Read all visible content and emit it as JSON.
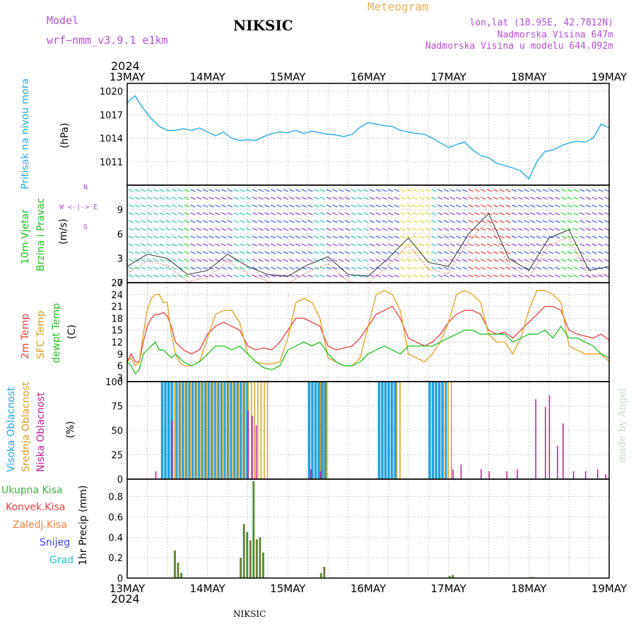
{
  "header": {
    "model_label": "Model",
    "model_name": "wrf−nmm_v3.9.1  e1km",
    "station": "NIKSIC",
    "meteogram": "Meteogram",
    "lonlat": "lon,lat (18.95E, 42.7812N)",
    "altitude": "Nadmorska Visina 647m",
    "model_altitude": "Nadmorska Visina u modelu 644.092m",
    "year_top": "2024",
    "year_bottom": "2024",
    "footer_station": "NIKSIC",
    "watermark": "made by Angel"
  },
  "colors": {
    "pressure": "#2aa8e0",
    "temp2m": "#e84040",
    "sfc": "#e0a020",
    "dewpt": "#20c020",
    "cloud_high": "#20a0e0",
    "cloud_mid": "#d8a020",
    "cloud_low": "#c01890",
    "precip_total": "#40b040",
    "precip_conv": "#c03030"
  },
  "x_axis": {
    "labels": [
      "13MAY",
      "14MAY",
      "15MAY",
      "16MAY",
      "17MAY",
      "18MAY",
      "19MAY"
    ]
  },
  "panel_labels": {
    "pressure": [
      "Pritisak na nivou mora",
      "(hPa)"
    ],
    "wind": [
      "10m Vjetar",
      "Brzina i Pravac",
      "(m/s)"
    ],
    "wind_compass": [
      "N",
      "W  <-|->  E",
      "S"
    ],
    "temp": [
      "2m Temp",
      "SFC Temp",
      "dewpt Temp",
      "(C)"
    ],
    "cloud": [
      "Visoka Oblacnost",
      "Srednja Oblacnost",
      "Niska Oblacnost",
      "(%)"
    ],
    "precip_legend": [
      "Ukupna Kisa",
      "Konvek.Kisa",
      "Zaledj.Kisa",
      "Snijeg",
      "Grad"
    ],
    "precip_y": [
      "1hr Precip (mm)"
    ]
  },
  "chart_data": [
    {
      "type": "line",
      "name": "pressure",
      "ylim": [
        1008,
        1021
      ],
      "yticks": [
        1011,
        1014,
        1017,
        1020
      ],
      "x_days": [
        0,
        0.05,
        0.1,
        0.15,
        0.2,
        0.3,
        0.4,
        0.5,
        0.6,
        0.7,
        0.8,
        0.9,
        1.0,
        1.1,
        1.2,
        1.3,
        1.4,
        1.5,
        1.6,
        1.7,
        1.8,
        1.9,
        2.0,
        2.1,
        2.2,
        2.3,
        2.4,
        2.5,
        2.6,
        2.7,
        2.8,
        2.9,
        3.0,
        3.1,
        3.2,
        3.3,
        3.4,
        3.5,
        3.6,
        3.7,
        3.8,
        3.9,
        4.0,
        4.1,
        4.2,
        4.3,
        4.4,
        4.5,
        4.6,
        4.7,
        4.8,
        4.9,
        5.0,
        5.1,
        5.2,
        5.3,
        5.4,
        5.5,
        5.6,
        5.7,
        5.8,
        5.9,
        6.0
      ],
      "values": [
        1018.5,
        1019.0,
        1019.4,
        1018.5,
        1017.8,
        1016.5,
        1015.5,
        1015.0,
        1015.0,
        1015.2,
        1015.0,
        1015.3,
        1014.8,
        1014.3,
        1014.8,
        1014.0,
        1013.7,
        1013.8,
        1013.7,
        1014.2,
        1014.6,
        1014.8,
        1014.7,
        1015.0,
        1014.6,
        1014.9,
        1014.7,
        1014.5,
        1014.4,
        1014.2,
        1014.5,
        1015.4,
        1016.0,
        1015.8,
        1015.6,
        1015.5,
        1015.0,
        1014.8,
        1014.6,
        1014.5,
        1014.0,
        1013.4,
        1012.8,
        1013.2,
        1013.5,
        1012.5,
        1011.8,
        1011.5,
        1010.8,
        1010.5,
        1010.2,
        1009.8,
        1008.8,
        1011.0,
        1012.3,
        1012.5,
        1013.0,
        1013.4,
        1013.6,
        1013.5,
        1014.0,
        1015.8,
        1015.3
      ]
    },
    {
      "type": "barb",
      "name": "wind",
      "ylim": [
        0,
        12
      ],
      "yticks": [
        0,
        3,
        6,
        9
      ],
      "x_days": [
        0,
        0.25,
        0.5,
        0.75,
        1.0,
        1.25,
        1.5,
        1.75,
        2.0,
        2.25,
        2.5,
        2.75,
        3.0,
        3.25,
        3.5,
        3.75,
        4.0,
        4.25,
        4.5,
        4.75,
        5.0,
        5.25,
        5.5,
        5.75,
        6.0
      ],
      "speed": [
        2.0,
        3.5,
        3.0,
        1.0,
        1.5,
        3.5,
        2.0,
        1.0,
        0.8,
        2.2,
        3.2,
        1.0,
        0.8,
        3.0,
        5.5,
        2.5,
        2.0,
        6.0,
        8.5,
        3.0,
        1.5,
        5.5,
        6.5,
        1.5,
        2.0
      ],
      "bands": [
        {
          "start": 0.0,
          "end": 0.65,
          "color": "#20c0a0"
        },
        {
          "start": 0.65,
          "end": 0.7,
          "color": "#20d020"
        },
        {
          "start": 1.3,
          "end": 1.5,
          "color": "#20c0a0"
        },
        {
          "start": 2.25,
          "end": 2.4,
          "color": "#20c0a0"
        },
        {
          "start": 2.7,
          "end": 2.95,
          "color": "#20c0a0"
        },
        {
          "start": 3.35,
          "end": 3.7,
          "color": "#e0d020"
        },
        {
          "start": 3.7,
          "end": 3.8,
          "color": "#20c0a0"
        },
        {
          "start": 4.2,
          "end": 4.7,
          "color": "#e83030"
        },
        {
          "start": 5.32,
          "end": 5.6,
          "color": "#20d020"
        }
      ]
    },
    {
      "type": "line",
      "name": "temperature",
      "ylim": [
        2,
        27
      ],
      "yticks": [
        3,
        6,
        9,
        12,
        15,
        18,
        21,
        24,
        27
      ],
      "x_days": [
        0,
        0.05,
        0.1,
        0.15,
        0.2,
        0.25,
        0.3,
        0.35,
        0.4,
        0.45,
        0.5,
        0.55,
        0.6,
        0.65,
        0.7,
        0.8,
        0.9,
        1.0,
        1.1,
        1.2,
        1.3,
        1.4,
        1.5,
        1.6,
        1.7,
        1.8,
        1.9,
        2.0,
        2.1,
        2.2,
        2.3,
        2.4,
        2.5,
        2.6,
        2.7,
        2.8,
        2.9,
        3.0,
        3.1,
        3.2,
        3.3,
        3.4,
        3.5,
        3.6,
        3.7,
        3.8,
        3.9,
        4.0,
        4.1,
        4.2,
        4.3,
        4.4,
        4.5,
        4.6,
        4.7,
        4.8,
        4.9,
        5.0,
        5.1,
        5.2,
        5.3,
        5.4,
        5.5,
        5.6,
        5.7,
        5.8,
        5.9,
        6.0
      ],
      "series": [
        {
          "name": "temp2m",
          "values": [
            7,
            9,
            7,
            7,
            12,
            16,
            18,
            19,
            19,
            19.5,
            18.5,
            16,
            12,
            11,
            10,
            9,
            10,
            14,
            16,
            17,
            16,
            15,
            11,
            10,
            10.5,
            10,
            12,
            15,
            18,
            18,
            17,
            16,
            11,
            10,
            10.5,
            11,
            13,
            16,
            19,
            20,
            21,
            18,
            13,
            12,
            11,
            12,
            14,
            17,
            19,
            20,
            20,
            19,
            15,
            14,
            14.5,
            13,
            15,
            17,
            19,
            21,
            21,
            20,
            15,
            14,
            13.5,
            13,
            14,
            12.5
          ]
        },
        {
          "name": "sfc",
          "values": [
            7,
            8,
            6,
            7,
            14,
            20,
            23,
            24,
            24,
            22,
            22,
            14,
            9,
            7,
            6,
            6,
            7,
            13,
            19,
            20,
            20,
            17,
            9,
            7,
            6.5,
            6.5,
            7,
            13,
            22,
            23,
            22,
            18,
            8,
            7,
            6,
            6,
            8,
            16,
            24,
            25,
            24,
            20,
            9,
            8,
            7,
            9,
            12,
            17,
            24,
            25,
            24,
            22,
            14,
            12,
            12,
            9,
            13,
            20,
            25,
            25,
            24,
            22,
            11,
            10,
            9,
            9,
            9,
            7
          ]
        },
        {
          "name": "dewpt",
          "values": [
            7,
            6,
            4,
            5,
            9,
            10,
            11,
            12,
            10,
            10,
            9,
            8,
            9,
            8,
            7,
            6,
            7,
            9,
            11,
            11,
            10,
            11,
            9,
            7,
            5.5,
            5,
            6,
            10,
            11,
            12,
            11,
            12,
            9,
            7,
            6,
            6,
            7,
            9,
            10,
            11,
            10,
            9,
            11,
            11,
            11,
            11,
            12,
            13,
            14,
            15,
            15,
            14,
            14,
            14,
            14,
            12,
            13,
            14,
            14,
            15,
            13,
            16,
            13,
            13,
            12,
            11,
            9,
            8
          ]
        }
      ]
    },
    {
      "type": "bar",
      "name": "cloud",
      "ylim": [
        0,
        100
      ],
      "yticks": [
        0,
        25,
        50,
        75,
        100
      ],
      "series": [
        {
          "name": "high",
          "ranges": [
            [
              0.42,
              0.57
            ],
            [
              0.6,
              1.5
            ],
            [
              2.25,
              2.45
            ],
            [
              3.12,
              3.35
            ],
            [
              3.75,
              3.95
            ]
          ],
          "value": 100
        },
        {
          "name": "mid",
          "ranges": [
            [
              0.58,
              1.5
            ],
            [
              1.5,
              1.75
            ],
            [
              2.4,
              2.5
            ],
            [
              3.35,
              3.4
            ],
            [
              3.95,
              4.05
            ]
          ],
          "value": 100
        },
        {
          "name": "low",
          "spikes": [
            [
              0.35,
              8
            ],
            [
              0.55,
              60
            ],
            [
              1.5,
              70
            ],
            [
              1.55,
              65
            ],
            [
              1.6,
              55
            ],
            [
              2.28,
              10
            ],
            [
              2.4,
              8
            ],
            [
              4.05,
              10
            ],
            [
              4.15,
              15
            ],
            [
              4.4,
              10
            ],
            [
              4.5,
              8
            ],
            [
              4.72,
              8
            ],
            [
              4.85,
              10
            ],
            [
              5.08,
              82
            ],
            [
              5.2,
              74
            ],
            [
              5.25,
              86
            ],
            [
              5.35,
              34
            ],
            [
              5.42,
              57
            ],
            [
              5.55,
              8
            ],
            [
              5.7,
              8
            ],
            [
              5.85,
              10
            ],
            [
              5.95,
              5
            ]
          ]
        }
      ]
    },
    {
      "type": "bar",
      "name": "precip",
      "ylim": [
        0,
        0.97
      ],
      "yticks": [
        0,
        0.2,
        0.4,
        0.6,
        0.8
      ],
      "x_days": [
        0.58,
        0.62,
        0.66,
        1.4,
        1.44,
        1.48,
        1.52,
        1.56,
        1.6,
        1.64,
        1.68,
        2.4,
        2.44,
        4.0,
        4.04,
        5.0,
        5.04
      ],
      "values": [
        0.27,
        0.15,
        0.05,
        0.2,
        0.53,
        0.45,
        0.37,
        0.95,
        0.38,
        0.4,
        0.25,
        0.05,
        0.11,
        0.02,
        0.03,
        0.01,
        0.01
      ]
    }
  ]
}
